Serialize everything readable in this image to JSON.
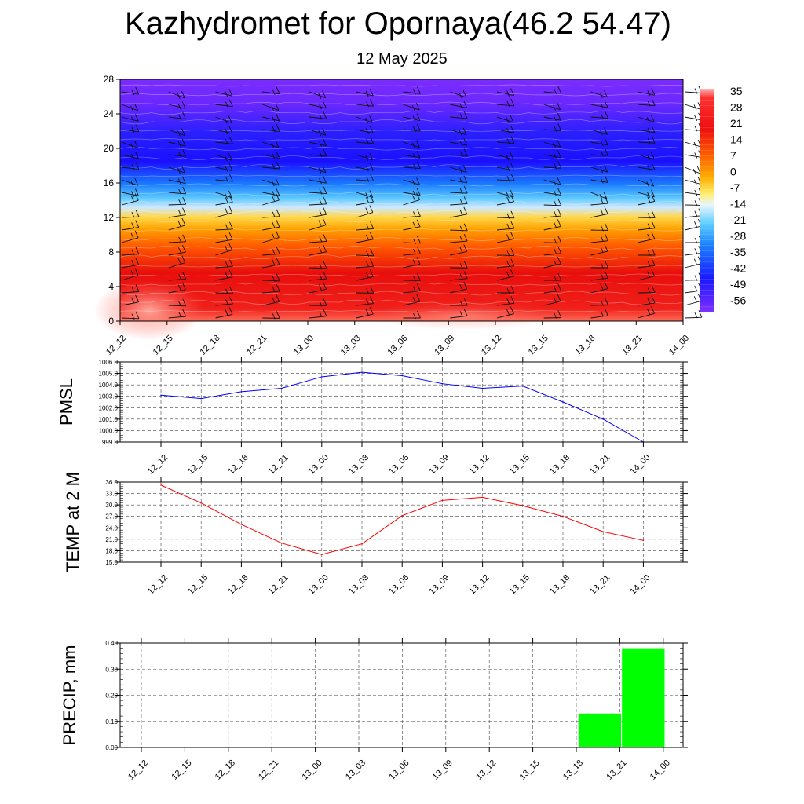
{
  "title": "Kazhydromet for Opornaya(46.2 54.47)",
  "subtitle": "12 May 2025",
  "chart_data": [
    {
      "type": "heatmap",
      "name": "temperature-cross-section",
      "x": [
        "12_12",
        "12_15",
        "12_18",
        "12_21",
        "13_00",
        "13_03",
        "13_06",
        "13_09",
        "13_12",
        "13_15",
        "13_18",
        "13_21",
        "14_00"
      ],
      "y_ticks": [
        0,
        4,
        8,
        12,
        16,
        20,
        24,
        28
      ],
      "ylim": [
        0,
        28
      ],
      "colorbar_labels": [
        "35",
        "28",
        "21",
        "14",
        "7",
        "0",
        "-7",
        "-14",
        "-21",
        "-28",
        "-35",
        "-42",
        "-49",
        "-56"
      ],
      "colorbar_range": [
        -60,
        38
      ],
      "overlay": "wind barbs",
      "approx_level_values": [
        {
          "level": 0,
          "value": 35
        },
        {
          "level": 4,
          "value": 30
        },
        {
          "level": 8,
          "value": 22
        },
        {
          "level": 10,
          "value": 14
        },
        {
          "level": 12,
          "value": 2
        },
        {
          "level": 13,
          "value": -12
        },
        {
          "level": 15,
          "value": -30
        },
        {
          "level": 17,
          "value": -45
        },
        {
          "level": 19,
          "value": -58
        },
        {
          "level": 22,
          "value": -56
        },
        {
          "level": 28,
          "value": -52
        }
      ],
      "colors": {
        "hot": "#ff2a00",
        "cold": "#2a00ff",
        "top": "#7a28ff"
      }
    },
    {
      "type": "line",
      "name": "pmsl",
      "ylabel": "PMSL",
      "x": [
        "12_12",
        "12_15",
        "12_18",
        "12_21",
        "13_00",
        "13_03",
        "13_06",
        "13_09",
        "13_12",
        "13_15",
        "13_18",
        "13_21",
        "14_00"
      ],
      "values": [
        1003.1,
        1002.8,
        1003.4,
        1003.7,
        1004.7,
        1005.1,
        1004.8,
        1004.1,
        1003.7,
        1003.9,
        1002.5,
        1001.0,
        999.0
      ],
      "ylim": [
        999.0,
        1006.0
      ],
      "yticks": [
        "999.0",
        "1000.0",
        "1001.0",
        "1002.0",
        "1003.0",
        "1004.0",
        "1005.0",
        "1006.0"
      ],
      "color": "#0000ff",
      "grid": true
    },
    {
      "type": "line",
      "name": "temp2m",
      "ylabel": "TEMP at 2 M",
      "x": [
        "12_12",
        "12_15",
        "12_18",
        "12_21",
        "13_00",
        "13_03",
        "13_06",
        "13_09",
        "13_12",
        "13_15",
        "13_18",
        "13_21",
        "14_00"
      ],
      "values": [
        35.2,
        30.5,
        24.9,
        20.0,
        17.0,
        19.8,
        27.2,
        31.2,
        32.0,
        29.8,
        27.0,
        23.0,
        20.7
      ],
      "ylim": [
        15.0,
        36.0
      ],
      "yticks": [
        "15.0",
        "18.0",
        "21.0",
        "24.0",
        "27.0",
        "30.0",
        "33.0",
        "36.0"
      ],
      "color": "#ff0000",
      "grid": true
    },
    {
      "type": "bar",
      "name": "precip",
      "ylabel": "PRECIP, mm",
      "categories": [
        "12_12",
        "12_15",
        "12_18",
        "12_21",
        "13_00",
        "13_03",
        "13_06",
        "13_09",
        "13_12",
        "13_15",
        "13_18",
        "13_21",
        "14_00"
      ],
      "values": [
        0,
        0,
        0,
        0,
        0,
        0,
        0,
        0,
        0,
        0,
        0.13,
        0.38,
        0
      ],
      "ylim": [
        0,
        0.4
      ],
      "yticks": [
        "0.00",
        "0.10",
        "0.20",
        "0.30",
        "0.40"
      ],
      "color": "#00ff00",
      "grid": true
    }
  ]
}
